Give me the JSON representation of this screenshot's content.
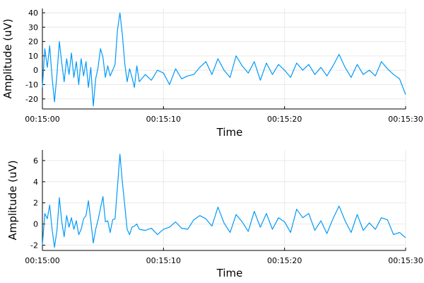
{
  "colors": {
    "series": "#009AF9",
    "grid": "#e8e8e8",
    "axis": "#000000"
  },
  "chart_data": [
    {
      "type": "line",
      "xlabel": "Time",
      "ylabel": "Amplitude (uV)",
      "xlim": [
        "00:15:00",
        "00:15:30"
      ],
      "ylim": [
        -27,
        43
      ],
      "xticks": [
        "00:15:00",
        "00:15:10",
        "00:15:20",
        "00:15:30"
      ],
      "yticks": [
        -20,
        -10,
        0,
        10,
        20,
        30,
        40
      ],
      "grid": true,
      "legend": "none",
      "series": [
        {
          "x_seconds_after_00_15_00": [
            0,
            0.2,
            0.4,
            0.6,
            0.8,
            1.0,
            1.2,
            1.4,
            1.6,
            1.8,
            2.0,
            2.2,
            2.4,
            2.6,
            2.8,
            3.0,
            3.2,
            3.4,
            3.6,
            3.8,
            4.0,
            4.2,
            4.4,
            4.6,
            4.8,
            5.0,
            5.2,
            5.4,
            5.6,
            5.8,
            6.0,
            6.2,
            6.4,
            6.6,
            6.8,
            7.0,
            7.2,
            7.4,
            7.6,
            7.8,
            8.0,
            8.5,
            9.0,
            9.5,
            10.0,
            10.5,
            11.0,
            11.5,
            12.0,
            12.5,
            13.0,
            13.5,
            14.0,
            14.5,
            15.0,
            15.5,
            16.0,
            16.5,
            17.0,
            17.5,
            18.0,
            18.5,
            19.0,
            19.5,
            20.0,
            20.5,
            21.0,
            21.5,
            22.0,
            22.5,
            23.0,
            23.5,
            24.0,
            24.5,
            25.0,
            25.5,
            26.0,
            26.5,
            27.0,
            27.5,
            28.0,
            28.5,
            29.0,
            29.5,
            30.0
          ],
          "values": [
            -12,
            15,
            2,
            17,
            -5,
            -22,
            -3,
            20,
            5,
            -8,
            8,
            -3,
            12,
            -5,
            6,
            -10,
            8,
            -4,
            6,
            -12,
            2,
            -25,
            -6,
            2,
            15,
            9,
            -5,
            3,
            -4,
            0,
            4,
            28,
            40,
            25,
            5,
            -8,
            1,
            -5,
            -12,
            3,
            -8,
            -3,
            -7,
            0,
            -2,
            -10,
            1,
            -6,
            -4,
            -3,
            2,
            6,
            -3,
            8,
            0,
            -5,
            10,
            3,
            -2,
            6,
            -7,
            5,
            -3,
            4,
            0,
            -5,
            5,
            0,
            4,
            -3,
            2,
            -4,
            3,
            11,
            2,
            -5,
            4,
            -3,
            0,
            -4,
            6,
            1,
            -3,
            -6,
            -17
          ]
        }
      ]
    },
    {
      "type": "line",
      "xlabel": "Time",
      "ylabel": "Amplitude (uV)",
      "xlim": [
        "00:15:00",
        "00:15:30"
      ],
      "ylim": [
        -2.5,
        7
      ],
      "xticks": [
        "00:15:00",
        "00:15:10",
        "00:15:20",
        "00:15:30"
      ],
      "yticks": [
        -2,
        0,
        2,
        4,
        6
      ],
      "grid": true,
      "legend": "none",
      "series": [
        {
          "x_seconds_after_00_15_00": [
            0,
            0.2,
            0.4,
            0.6,
            0.8,
            1.0,
            1.2,
            1.4,
            1.6,
            1.8,
            2.0,
            2.2,
            2.4,
            2.6,
            2.8,
            3.0,
            3.2,
            3.4,
            3.6,
            3.8,
            4.0,
            4.2,
            4.4,
            4.6,
            4.8,
            5.0,
            5.2,
            5.4,
            5.6,
            5.8,
            6.0,
            6.2,
            6.4,
            6.6,
            6.8,
            7.0,
            7.2,
            7.4,
            7.6,
            7.8,
            8.0,
            8.5,
            9.0,
            9.5,
            10.0,
            10.5,
            11.0,
            11.5,
            12.0,
            12.5,
            13.0,
            13.5,
            14.0,
            14.5,
            15.0,
            15.5,
            16.0,
            16.5,
            17.0,
            17.5,
            18.0,
            18.5,
            19.0,
            19.5,
            20.0,
            20.5,
            21.0,
            21.5,
            22.0,
            22.5,
            23.0,
            23.5,
            24.0,
            24.5,
            25.0,
            25.5,
            26.0,
            26.5,
            27.0,
            27.5,
            28.0,
            28.5,
            29.0,
            29.5,
            30.0
          ],
          "values": [
            -2,
            1,
            0.5,
            1.8,
            -0.5,
            -2.2,
            -0.6,
            2.5,
            0.2,
            -1.2,
            0.8,
            -0.3,
            0.6,
            -0.5,
            0.3,
            -1.0,
            -0.5,
            0.5,
            0.8,
            2.2,
            0.3,
            -1.8,
            -0.5,
            0.4,
            1.5,
            2.6,
            0.2,
            0.3,
            -0.8,
            0.4,
            0.5,
            3.5,
            6.6,
            4.0,
            1.8,
            -0.5,
            -1.0,
            -0.3,
            -0.2,
            0.0,
            -0.5,
            -0.6,
            -0.4,
            -1.0,
            -0.5,
            -0.3,
            0.2,
            -0.4,
            -0.5,
            0.4,
            0.8,
            0.5,
            -0.2,
            1.6,
            0.1,
            -0.8,
            0.9,
            0.2,
            -0.7,
            1.2,
            -0.3,
            1.0,
            -0.5,
            0.6,
            0.2,
            -0.8,
            1.4,
            0.6,
            1.0,
            -0.6,
            0.3,
            -0.9,
            0.5,
            1.7,
            0.3,
            -0.8,
            0.9,
            -0.6,
            0.1,
            -0.5,
            0.6,
            0.4,
            -1.0,
            -0.8,
            -1.3
          ]
        }
      ]
    }
  ]
}
